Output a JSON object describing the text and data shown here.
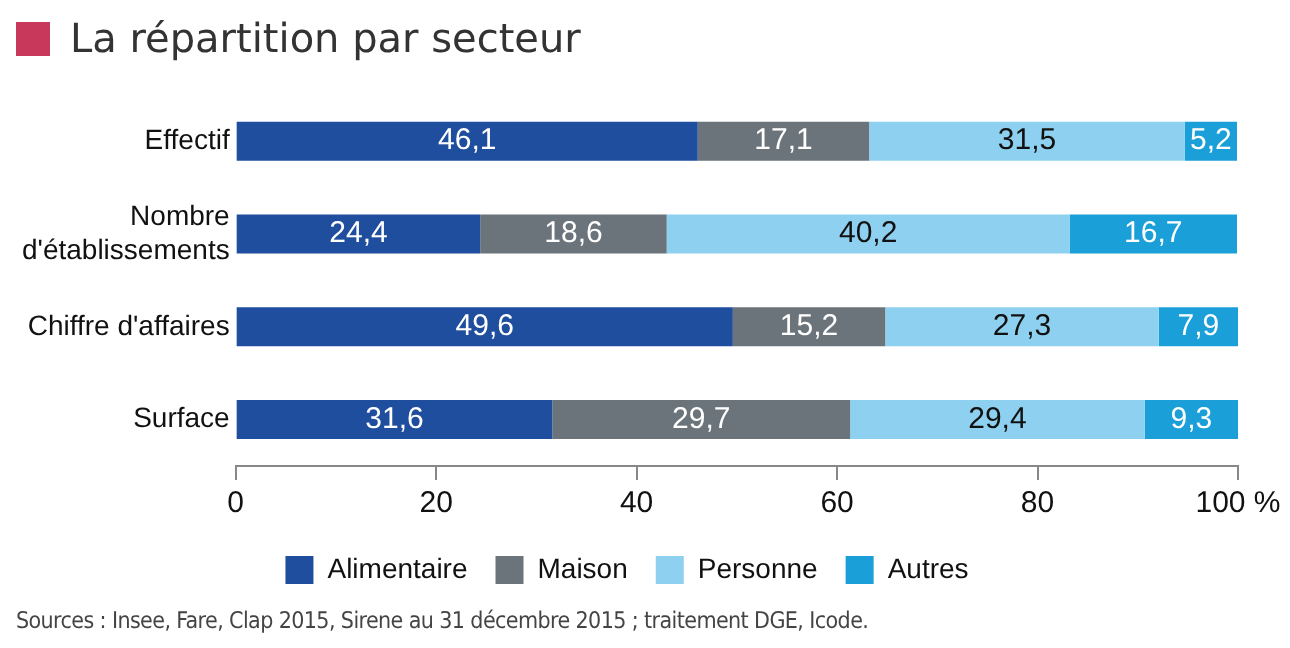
{
  "chart_data": {
    "type": "bar",
    "orientation": "horizontal",
    "stacked": true,
    "title": "La répartition par secteur",
    "categories": [
      "Effectif",
      "Nombre\nd'établissements",
      "Chiffre d'affaires",
      "Surface"
    ],
    "series": [
      {
        "name": "Alimentaire",
        "color": "#1f4e9e",
        "values": [
          46.1,
          24.4,
          49.6,
          31.6
        ],
        "value_labels": [
          "46,1",
          "24,4",
          "49,6",
          "31,6"
        ]
      },
      {
        "name": "Maison",
        "color": "#6b747b",
        "values": [
          17.1,
          18.6,
          15.2,
          29.7
        ],
        "value_labels": [
          "17,1",
          "18,6",
          "15,2",
          "29,7"
        ]
      },
      {
        "name": "Personne",
        "color": "#8ed0f0",
        "values": [
          31.5,
          40.2,
          27.3,
          29.4
        ],
        "value_labels": [
          "31,5",
          "40,2",
          "27,3",
          "29,4"
        ]
      },
      {
        "name": "Autres",
        "color": "#1a9fd8",
        "values": [
          5.2,
          16.7,
          7.9,
          9.3
        ],
        "value_labels": [
          "5,2",
          "16,7",
          "7,9",
          "9,3"
        ]
      }
    ],
    "xlim": [
      0,
      100
    ],
    "xticks": [
      0,
      20,
      40,
      60,
      {
        "value": 80,
        "label": "80"
      },
      {
        "value": 100,
        "label": "100 %"
      }
    ],
    "grid": false,
    "legend": "bottom",
    "annotations": [
      "Sources :  Insee, Fare, Clap 2015, Sirene au 31 décembre 2015 ; traitement DGE, Icode."
    ]
  }
}
